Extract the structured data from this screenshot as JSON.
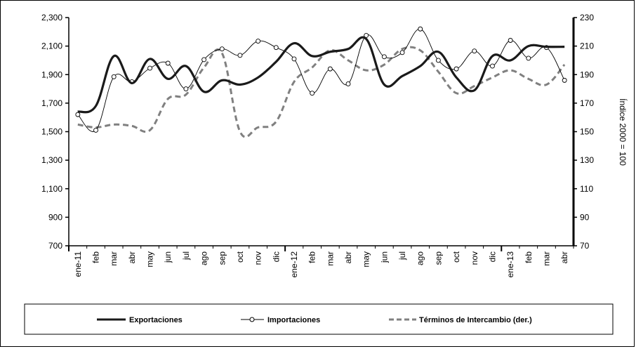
{
  "chart_data": {
    "type": "line",
    "categories": [
      "ene-11",
      "feb",
      "mar",
      "abr",
      "may",
      "jun",
      "jul",
      "ago",
      "sep",
      "oct",
      "nov",
      "dic",
      "ene-12",
      "feb",
      "mar",
      "abr",
      "may",
      "jun",
      "jul",
      "ago",
      "sep",
      "oct",
      "nov",
      "dic",
      "ene-13",
      "feb",
      "mar",
      "abr"
    ],
    "left_axis": {
      "ylim": [
        700,
        2300
      ],
      "ticks": [
        700,
        900,
        1100,
        1300,
        1500,
        1700,
        1900,
        2100,
        2300
      ],
      "tick_labels": [
        "700",
        "900",
        "1,100",
        "1,300",
        "1,500",
        "1,700",
        "1,900",
        "2,100",
        "2,300"
      ]
    },
    "right_axis": {
      "ylim": [
        70,
        230
      ],
      "ticks": [
        70,
        90,
        110,
        130,
        150,
        170,
        190,
        210,
        230
      ],
      "tick_labels": [
        "70",
        "90",
        "110",
        "130",
        "150",
        "170",
        "190",
        "210",
        "230"
      ],
      "label": "Índice 2000 = 100"
    },
    "series": [
      {
        "name": "Exportaciones",
        "axis": "left",
        "style": "thick-solid",
        "color": "#1a1a1a",
        "values": [
          1640,
          1680,
          2030,
          1840,
          2010,
          1870,
          1960,
          1780,
          1860,
          1830,
          1880,
          1990,
          2120,
          2030,
          2060,
          2080,
          2150,
          1830,
          1890,
          1960,
          2060,
          1880,
          1790,
          2030,
          2000,
          2100,
          2095,
          2095
        ]
      },
      {
        "name": "Importaciones",
        "axis": "left",
        "style": "thin-circles",
        "color": "#000000",
        "values": [
          1620,
          1510,
          1885,
          1850,
          1945,
          1980,
          1800,
          2005,
          2080,
          2035,
          2135,
          2090,
          2010,
          1770,
          1940,
          1835,
          2175,
          2025,
          2055,
          2220,
          2000,
          1940,
          2065,
          1960,
          2140,
          2015,
          2090,
          1860
        ]
      },
      {
        "name": "Términos de Intercambio (der.)",
        "axis": "right",
        "style": "dashed",
        "color": "#808080",
        "values": [
          155,
          153,
          155,
          154,
          151,
          173,
          176,
          195,
          205,
          150,
          153,
          157,
          185,
          195,
          207,
          200,
          193,
          197,
          208,
          207,
          192,
          177,
          182,
          188,
          193,
          187,
          183,
          197
        ]
      }
    ],
    "legend_position": "bottom",
    "grid": false
  }
}
